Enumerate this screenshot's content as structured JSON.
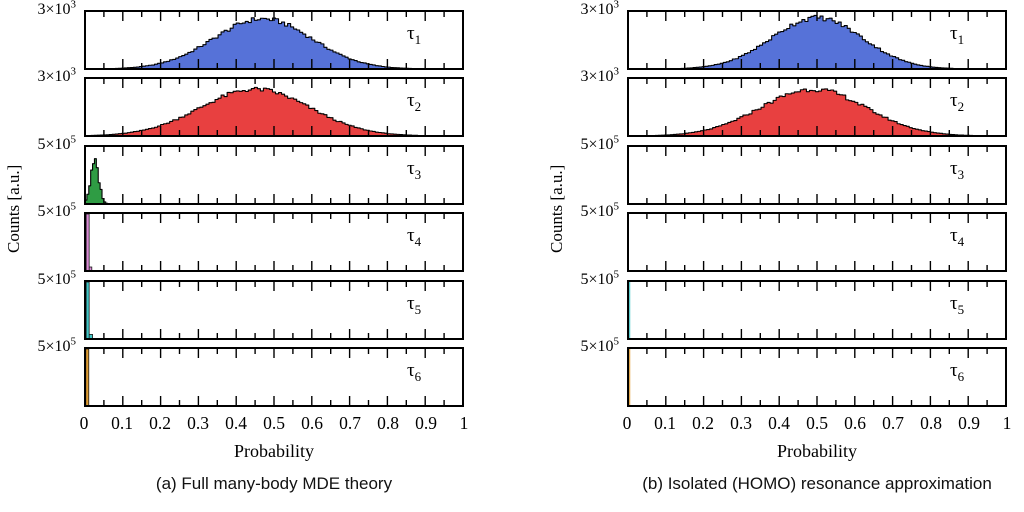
{
  "chart_data": [
    {
      "id": "a",
      "type": "bar",
      "subtype": "stacked-histogram-panels",
      "caption": "(a) Full many-body MDE theory",
      "xlabel": "Probability",
      "ylabel": "Counts [a.u.]",
      "xlim": [
        0,
        1
      ],
      "x_tick_labels": [
        "0",
        "0.1",
        "0.2",
        "0.3",
        "0.4",
        "0.5",
        "0.6",
        "0.7",
        "0.8",
        "0.9",
        "1"
      ],
      "x_minor_tick_step": 0.05,
      "grid": false,
      "panels": [
        {
          "tau": "τ",
          "sub": "1",
          "ymax_base": "3×10",
          "ymax_exp": "3",
          "ymax_value": 3000,
          "color": "#5672d8",
          "dist": {
            "kind": "gaussian",
            "center": 0.47,
            "sigma": 0.13,
            "peak": 0.88,
            "seed": 1
          }
        },
        {
          "tau": "τ",
          "sub": "2",
          "ymax_base": "3×10",
          "ymax_exp": "3",
          "ymax_value": 3000,
          "color": "#e84040",
          "dist": {
            "kind": "gaussian",
            "center": 0.45,
            "sigma": 0.145,
            "peak": 0.82,
            "seed": 2
          }
        },
        {
          "tau": "τ",
          "sub": "3",
          "ymax_base": "5×10",
          "ymax_exp": "5",
          "ymax_value": 500000,
          "color": "#2f9c44",
          "dist": {
            "kind": "gaussian",
            "center": 0.026,
            "sigma": 0.011,
            "peak": 0.72,
            "seed": 3,
            "bin": 0.005,
            "jitter": 0.14
          }
        },
        {
          "tau": "τ",
          "sub": "4",
          "ymax_base": "5×10",
          "ymax_exp": "5",
          "ymax_value": 500000,
          "color": "#d98ad4",
          "dist": {
            "kind": "bar",
            "x": 0.003,
            "width": 0.008,
            "height": 1.0,
            "step_width": 0.015,
            "step_height": 0.07
          }
        },
        {
          "tau": "τ",
          "sub": "5",
          "ymax_base": "5×10",
          "ymax_exp": "5",
          "ymax_value": 500000,
          "color": "#3fc6c6",
          "dist": {
            "kind": "bar",
            "x": 0.003,
            "width": 0.008,
            "height": 1.0,
            "step_width": 0.017,
            "step_height": 0.08
          }
        },
        {
          "tau": "τ",
          "sub": "6",
          "ymax_base": "5×10",
          "ymax_exp": "5",
          "ymax_value": 500000,
          "color": "#dd9a30",
          "dist": {
            "kind": "bar",
            "x": 0.002,
            "width": 0.008,
            "height": 1.0
          }
        }
      ]
    },
    {
      "id": "b",
      "type": "bar",
      "subtype": "stacked-histogram-panels",
      "caption": "(b) Isolated (HOMO) resonance approximation",
      "xlabel": "Probability",
      "ylabel": "Counts [a.u.]",
      "xlim": [
        0,
        1
      ],
      "x_tick_labels": [
        "0",
        "0.1",
        "0.2",
        "0.3",
        "0.4",
        "0.5",
        "0.6",
        "0.7",
        "0.8",
        "0.9",
        "1"
      ],
      "x_minor_tick_step": 0.05,
      "grid": false,
      "panels": [
        {
          "tau": "τ",
          "sub": "1",
          "ymax_base": "3×10",
          "ymax_exp": "3",
          "ymax_value": 3000,
          "color": "#5672d8",
          "dist": {
            "kind": "gaussian",
            "center": 0.5,
            "sigma": 0.12,
            "peak": 0.9,
            "seed": 4
          }
        },
        {
          "tau": "τ",
          "sub": "2",
          "ymax_base": "3×10",
          "ymax_exp": "3",
          "ymax_value": 3000,
          "color": "#e84040",
          "dist": {
            "kind": "gaussian",
            "center": 0.49,
            "sigma": 0.14,
            "peak": 0.82,
            "seed": 5
          }
        },
        {
          "tau": "τ",
          "sub": "3",
          "ymax_base": "5×10",
          "ymax_exp": "5",
          "ymax_value": 500000,
          "color": "#2f9c44",
          "dist": {
            "kind": "none"
          }
        },
        {
          "tau": "τ",
          "sub": "4",
          "ymax_base": "5×10",
          "ymax_exp": "5",
          "ymax_value": 500000,
          "color": "#d98ad4",
          "dist": {
            "kind": "none"
          }
        },
        {
          "tau": "τ",
          "sub": "5",
          "ymax_base": "5×10",
          "ymax_exp": "5",
          "ymax_value": 500000,
          "color": "#3fc6c6",
          "dist": {
            "kind": "hairline",
            "x": 0.002,
            "width": 0.004,
            "height": 1.0
          }
        },
        {
          "tau": "τ",
          "sub": "6",
          "ymax_base": "5×10",
          "ymax_exp": "5",
          "ymax_value": 500000,
          "color": "#dd9a30",
          "dist": {
            "kind": "hairline",
            "x": 0.002,
            "width": 0.004,
            "height": 1.0
          }
        }
      ]
    }
  ]
}
